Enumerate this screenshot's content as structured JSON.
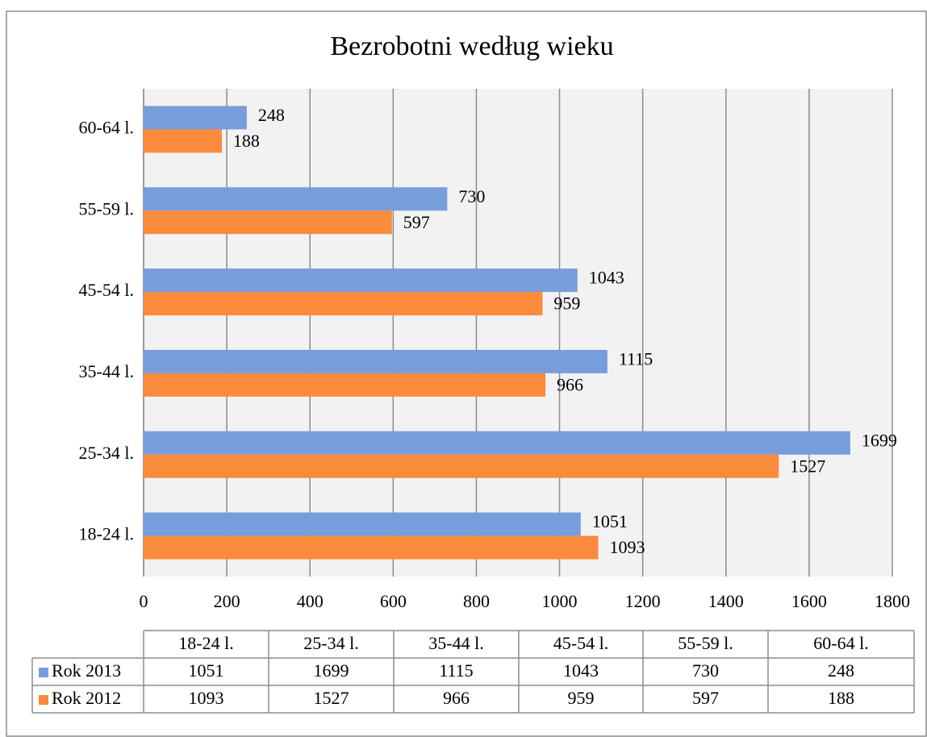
{
  "chart_data": {
    "type": "hbar",
    "title": "Bezrobotni według wieku",
    "categories": [
      "18-24 l.",
      "25-34 l.",
      "35-44 l.",
      "45-54 l.",
      "55-59 l.",
      "60-64 l."
    ],
    "series": [
      {
        "name": "Rok 2013",
        "color": "#789ddb",
        "values": [
          1051,
          1699,
          1115,
          1043,
          730,
          248
        ]
      },
      {
        "name": "Rok 2012",
        "color": "#f98b3b",
        "values": [
          1093,
          1527,
          966,
          959,
          597,
          188
        ]
      }
    ],
    "xlim": [
      0,
      1800
    ],
    "xticks": [
      0,
      200,
      400,
      600,
      800,
      1000,
      1200,
      1400,
      1600,
      1800
    ],
    "grid": true,
    "data_table": true
  }
}
